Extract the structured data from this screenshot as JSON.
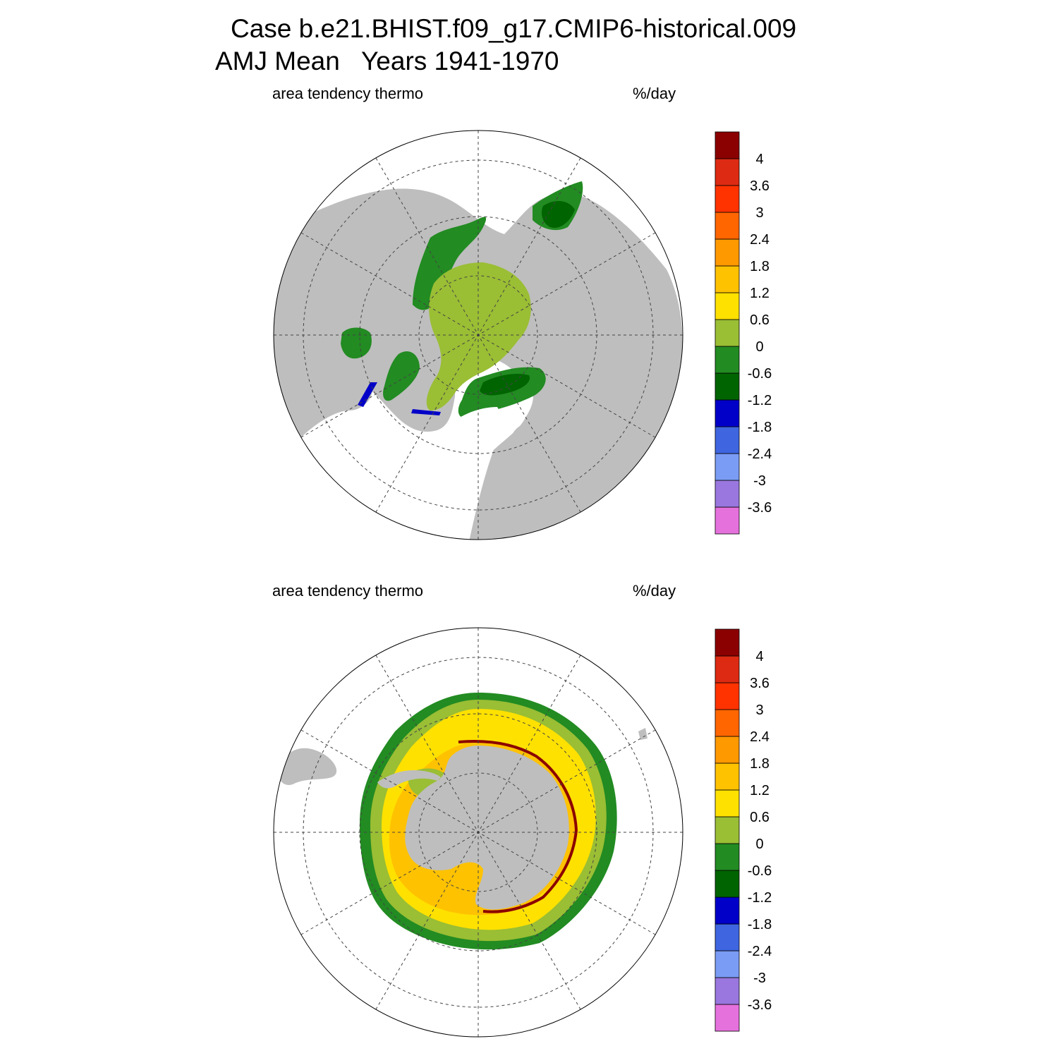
{
  "title_line1": "Case b.e21.BHIST.f09_g17.CMIP6-historical.009",
  "title_line2": "AMJ Mean   Years 1941-1970",
  "panels": [
    {
      "variable_label": "area tendency thermo",
      "units_label": "%/day",
      "hemisphere": "north"
    },
    {
      "variable_label": "area tendency thermo",
      "units_label": "%/day",
      "hemisphere": "south"
    }
  ],
  "colorbar": {
    "colors": [
      "#E571DC",
      "#9A77DE",
      "#7A9CF4",
      "#3F66E0",
      "#0000C8",
      "#006400",
      "#228B22",
      "#9ABE34",
      "#FFE100",
      "#FFC200",
      "#FF9900",
      "#FF6600",
      "#FF3300",
      "#DD2A12",
      "#8B0000"
    ],
    "tick_labels": [
      "-3.6",
      "-3",
      "-2.4",
      "-1.8",
      "-1.2",
      "-0.6",
      "0",
      "0.6",
      "1.2",
      "1.8",
      "2.4",
      "3",
      "3.6",
      "4"
    ]
  },
  "map_colors": {
    "land": "#BEBEBE",
    "no_ice": "#FFFFFF"
  }
}
